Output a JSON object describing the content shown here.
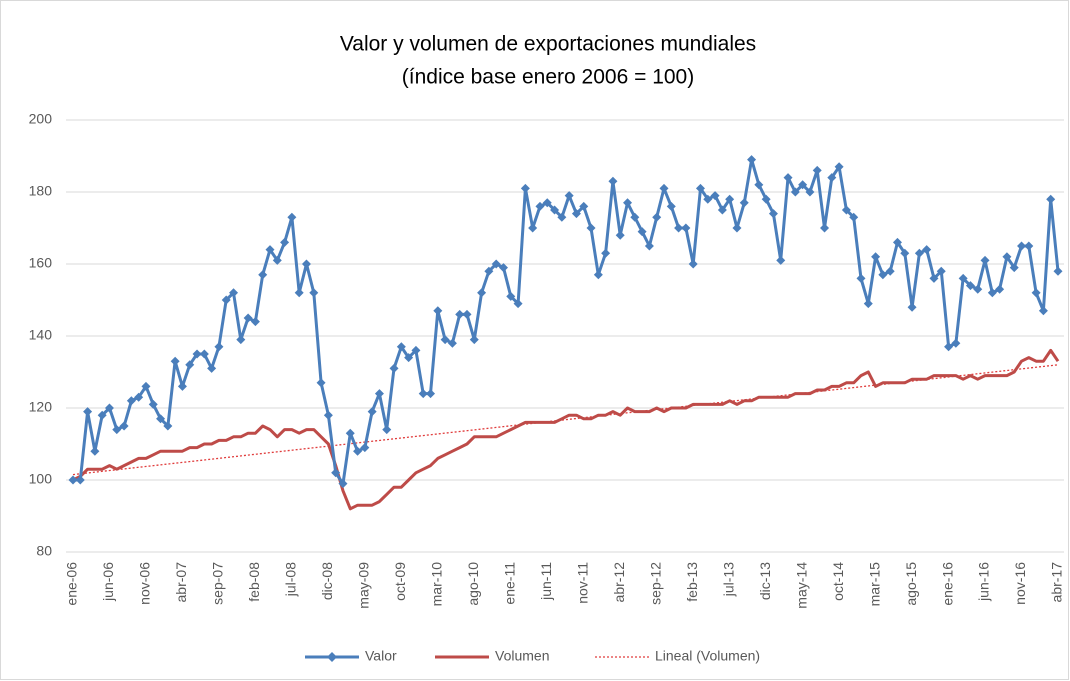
{
  "chart_data": {
    "type": "line",
    "title": "Valor y volumen de exportaciones mundiales",
    "subtitle": "(índice base enero 2006 = 100)",
    "categories": [
      "ene-06",
      null,
      null,
      null,
      null,
      "jun-06",
      null,
      null,
      null,
      null,
      "nov-06",
      null,
      null,
      null,
      null,
      "abr-07",
      null,
      null,
      null,
      null,
      "sep-07",
      null,
      null,
      null,
      null,
      "feb-08",
      null,
      null,
      null,
      null,
      "jul-08",
      null,
      null,
      null,
      null,
      "dic-08",
      null,
      null,
      null,
      null,
      "may-09",
      null,
      null,
      null,
      null,
      "oct-09",
      null,
      null,
      null,
      null,
      "mar-10",
      null,
      null,
      null,
      null,
      "ago-10",
      null,
      null,
      null,
      null,
      "ene-11",
      null,
      null,
      null,
      null,
      "jun-11",
      null,
      null,
      null,
      null,
      "nov-11",
      null,
      null,
      null,
      null,
      "abr-12",
      null,
      null,
      null,
      null,
      "sep-12",
      null,
      null,
      null,
      null,
      "feb-13",
      null,
      null,
      null,
      null,
      "jul-13",
      null,
      null,
      null,
      null,
      "dic-13",
      null,
      null,
      null,
      null,
      "may-14",
      null,
      null,
      null,
      null,
      "oct-14",
      null,
      null,
      null,
      null,
      "mar-15",
      null,
      null,
      null,
      null,
      "ago-15",
      null,
      null,
      null,
      null,
      "ene-16",
      null,
      null,
      null,
      null,
      "jun-16",
      null,
      null,
      null,
      null,
      "nov-16",
      null,
      null,
      null,
      null,
      "abr-17"
    ],
    "series": [
      {
        "name": "Valor",
        "color": "#4a7ebb",
        "marker": "diamond",
        "values": [
          100,
          100,
          119,
          108,
          118,
          120,
          114,
          115,
          122,
          123,
          126,
          121,
          117,
          115,
          133,
          126,
          132,
          135,
          135,
          131,
          137,
          150,
          152,
          139,
          145,
          144,
          157,
          164,
          161,
          166,
          173,
          152,
          160,
          152,
          127,
          118,
          102,
          99,
          113,
          108,
          109,
          119,
          124,
          114,
          131,
          137,
          134,
          136,
          124,
          124,
          147,
          139,
          138,
          146,
          146,
          139,
          152,
          158,
          160,
          159,
          151,
          149,
          181,
          170,
          176,
          177,
          175,
          173,
          179,
          174,
          176,
          170,
          157,
          163,
          183,
          168,
          177,
          173,
          169,
          165,
          173,
          181,
          176,
          170,
          170,
          160,
          181,
          178,
          179,
          175,
          178,
          170,
          177,
          189,
          182,
          178,
          174,
          161,
          184,
          180,
          182,
          180,
          186,
          170,
          184,
          187,
          175,
          173,
          156,
          149,
          162,
          157,
          158,
          166,
          163,
          148,
          163,
          164,
          156,
          158,
          137,
          138,
          156,
          154,
          153,
          161,
          152,
          153,
          162,
          159,
          165,
          165,
          152,
          147,
          178,
          158
        ]
      },
      {
        "name": "Volumen",
        "color": "#be4b48",
        "values": [
          100,
          101,
          103,
          103,
          103,
          104,
          103,
          104,
          105,
          106,
          106,
          107,
          108,
          108,
          108,
          108,
          109,
          109,
          110,
          110,
          111,
          111,
          112,
          112,
          113,
          113,
          115,
          114,
          112,
          114,
          114,
          113,
          114,
          114,
          112,
          110,
          104,
          97,
          92,
          93,
          93,
          93,
          94,
          96,
          98,
          98,
          100,
          102,
          103,
          104,
          106,
          107,
          108,
          109,
          110,
          112,
          112,
          112,
          112,
          113,
          114,
          115,
          116,
          116,
          116,
          116,
          116,
          117,
          118,
          118,
          117,
          117,
          118,
          118,
          119,
          118,
          120,
          119,
          119,
          119,
          120,
          119,
          120,
          120,
          120,
          121,
          121,
          121,
          121,
          121,
          122,
          121,
          122,
          122,
          123,
          123,
          123,
          123,
          123,
          124,
          124,
          124,
          125,
          125,
          126,
          126,
          127,
          127,
          129,
          130,
          126,
          127,
          127,
          127,
          127,
          128,
          128,
          128,
          129,
          129,
          129,
          129,
          128,
          129,
          128,
          129,
          129,
          129,
          129,
          130,
          133,
          134,
          133,
          133,
          136,
          133
        ]
      }
    ],
    "trendline": {
      "name": "Lineal (Volumen)",
      "color": "#e03c3c",
      "start": 101.5,
      "end": 132
    },
    "ylim": [
      80,
      200
    ],
    "yticks": [
      80,
      100,
      120,
      140,
      160,
      180,
      200
    ],
    "grid": true,
    "legend": "bottom"
  }
}
